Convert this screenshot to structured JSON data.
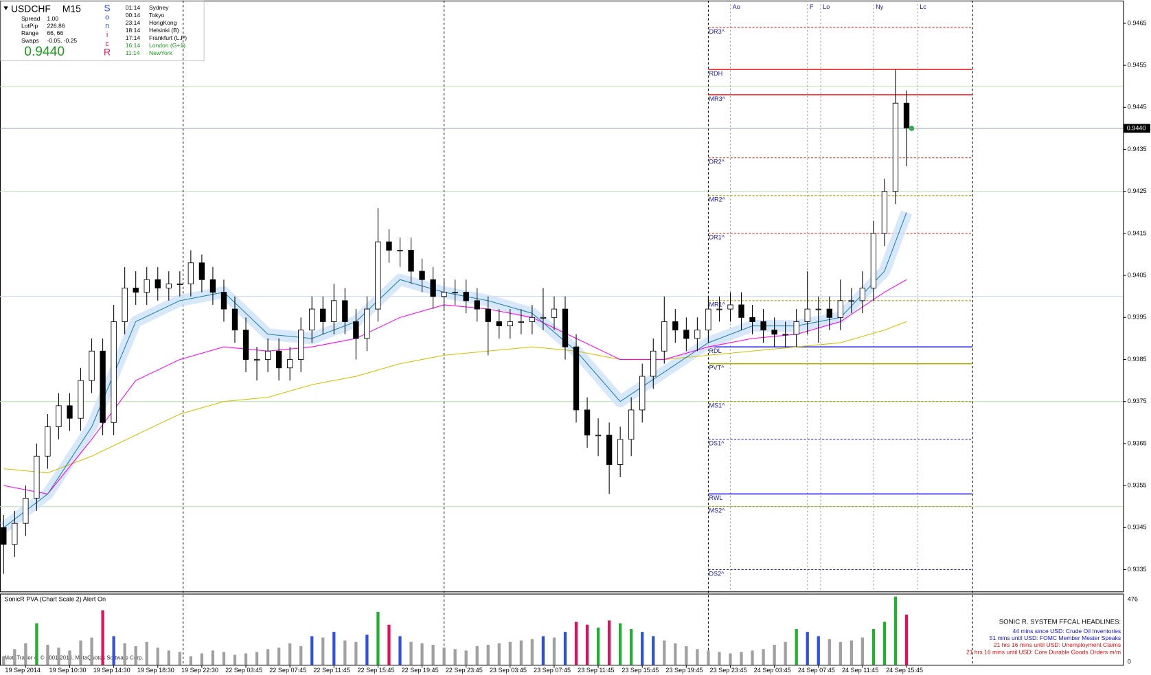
{
  "chart_data": {
    "type": "candlestick",
    "categories": [
      null,
      null,
      "19 Sep 2014",
      null,
      null,
      null,
      "19 Sep 10:30",
      null,
      null,
      null,
      "19 Sep 14:30",
      null,
      null,
      null,
      "19 Sep 18:30",
      null,
      null,
      null,
      "19 Sep 22:30",
      null,
      null,
      null,
      "22 Sep 03:45",
      null,
      null,
      null,
      "22 Sep 07:45",
      null,
      null,
      null,
      "22 Sep 11:45",
      null,
      null,
      null,
      "22 Sep 15:45",
      null,
      null,
      null,
      "22 Sep 19:45",
      null,
      null,
      null,
      "22 Sep 23:45",
      null,
      null,
      null,
      "23 Sep 03:45",
      null,
      null,
      null,
      "23 Sep 07:45",
      null,
      null,
      null,
      "23 Sep 11:45",
      null,
      null,
      null,
      "23 Sep 15:45",
      null,
      null,
      null,
      "23 Sep 19:45",
      null,
      null,
      null,
      "23 Sep 23:45",
      null,
      null,
      null,
      "24 Sep 03:45",
      null,
      null,
      null,
      "24 Sep 07:45",
      null,
      null,
      null,
      "24 Sep 11:45",
      null,
      null,
      null,
      "24 Sep 15:45"
    ],
    "open": [
      0.9345,
      0.9341,
      0.9346,
      0.9352,
      0.9362,
      0.9369,
      0.9374,
      0.9371,
      0.938,
      0.9387,
      0.937,
      0.9394,
      0.9402,
      0.9401,
      0.9404,
      0.9402,
      0.9403,
      0.9403,
      0.9408,
      0.9404,
      0.9401,
      0.9397,
      0.9392,
      0.9385,
      0.9385,
      0.9387,
      0.9383,
      0.9385,
      0.9392,
      0.9397,
      0.9394,
      0.9399,
      0.9394,
      0.939,
      0.9397,
      0.9413,
      0.9411,
      0.9411,
      0.9406,
      0.9404,
      0.94,
      0.9401,
      0.9401,
      0.9399,
      0.9397,
      0.9394,
      0.9393,
      0.9394,
      0.9394,
      0.9395,
      0.9395,
      0.9397,
      0.9388,
      0.9373,
      0.9367,
      0.9367,
      0.936,
      0.9366,
      0.9373,
      0.9381,
      0.9387,
      0.9394,
      0.9392,
      0.939,
      0.9392,
      0.9397,
      0.9397,
      0.9398,
      0.9395,
      0.9394,
      0.9392,
      0.9391,
      0.9391,
      0.9394,
      0.9397,
      0.9397,
      0.9395,
      0.9399,
      0.9399,
      0.9402,
      0.9415,
      0.9425,
      0.9446
    ],
    "high": [
      0.9348,
      0.9349,
      0.9355,
      0.9365,
      0.9372,
      0.9377,
      0.9377,
      0.9383,
      0.939,
      0.939,
      0.9398,
      0.9407,
      0.9406,
      0.9407,
      0.9407,
      0.9406,
      0.9406,
      0.9411,
      0.941,
      0.9407,
      0.9404,
      0.94,
      0.9395,
      0.9388,
      0.939,
      0.939,
      0.9388,
      0.9395,
      0.94,
      0.94,
      0.9403,
      0.9402,
      0.9397,
      0.94,
      0.9421,
      0.9416,
      0.9414,
      0.9414,
      0.9409,
      0.9407,
      0.9404,
      0.9404,
      0.9404,
      0.9402,
      0.94,
      0.9397,
      0.9397,
      0.9397,
      0.9398,
      0.9402,
      0.94,
      0.94,
      0.9391,
      0.9376,
      0.9371,
      0.937,
      0.9369,
      0.9376,
      0.9384,
      0.939,
      0.94,
      0.9397,
      0.9395,
      0.9395,
      0.94,
      0.94,
      0.9401,
      0.9401,
      0.9398,
      0.9397,
      0.9395,
      0.9394,
      0.9397,
      0.9406,
      0.94,
      0.94,
      0.9404,
      0.9402,
      0.9406,
      0.9418,
      0.9428,
      0.9454,
      0.9449
    ],
    "low": [
      0.9334,
      0.9338,
      0.9343,
      0.9349,
      0.9359,
      0.9366,
      0.9368,
      0.9368,
      0.9377,
      0.9367,
      0.9367,
      0.9391,
      0.9398,
      0.9398,
      0.9399,
      0.9399,
      0.94,
      0.94,
      0.9401,
      0.9398,
      0.9394,
      0.9389,
      0.9382,
      0.938,
      0.9382,
      0.938,
      0.938,
      0.9382,
      0.9389,
      0.9391,
      0.9391,
      0.9391,
      0.9385,
      0.9387,
      0.9394,
      0.9408,
      0.9407,
      0.9403,
      0.9401,
      0.9397,
      0.9397,
      0.9398,
      0.9396,
      0.9394,
      0.9386,
      0.939,
      0.939,
      0.9391,
      0.9391,
      0.9392,
      0.9392,
      0.9385,
      0.937,
      0.9364,
      0.9362,
      0.9353,
      0.9357,
      0.9362,
      0.937,
      0.9378,
      0.9384,
      0.9389,
      0.9387,
      0.9387,
      0.9389,
      0.9394,
      0.9394,
      0.9392,
      0.9391,
      0.9389,
      0.9388,
      0.9388,
      0.9388,
      0.9391,
      0.9389,
      0.9392,
      0.9392,
      0.9396,
      0.9396,
      0.9399,
      0.9412,
      0.9422,
      0.9431
    ],
    "close": [
      0.9341,
      0.9346,
      0.9352,
      0.9362,
      0.9369,
      0.9374,
      0.9371,
      0.938,
      0.9387,
      0.937,
      0.9394,
      0.9402,
      0.9401,
      0.9404,
      0.9402,
      0.9403,
      0.9403,
      0.9408,
      0.9404,
      0.9401,
      0.9397,
      0.9392,
      0.9385,
      0.9385,
      0.9387,
      0.9383,
      0.9385,
      0.9392,
      0.9397,
      0.9394,
      0.9399,
      0.9394,
      0.939,
      0.9397,
      0.9413,
      0.9411,
      0.9411,
      0.9406,
      0.9404,
      0.94,
      0.9401,
      0.9401,
      0.9399,
      0.9397,
      0.9394,
      0.9393,
      0.9394,
      0.9394,
      0.9395,
      0.9395,
      0.9397,
      0.9388,
      0.9373,
      0.9367,
      0.9367,
      0.936,
      0.9366,
      0.9373,
      0.9381,
      0.9387,
      0.9394,
      0.9392,
      0.939,
      0.9392,
      0.9397,
      0.9397,
      0.9398,
      0.9395,
      0.9394,
      0.9392,
      0.9391,
      0.9391,
      0.9394,
      0.9397,
      0.9397,
      0.9395,
      0.9399,
      0.9399,
      0.9402,
      0.9415,
      0.9425,
      0.9446,
      0.944
    ],
    "xlim": [
      -0.33,
      101.67
    ],
    "ylim": [
      0.93298,
      0.94704
    ],
    "yticks": [
      0.9335,
      0.9345,
      0.9355,
      0.9365,
      0.9375,
      0.9385,
      0.9395,
      0.9405,
      0.9415,
      0.9425,
      0.9435,
      0.9445,
      0.9455,
      0.9465
    ],
    "current_price": {
      "value": 0.944,
      "label": "0.9440"
    },
    "overlays": [
      {
        "color": "#d4c000",
        "x": [
          0,
          4,
          8,
          12,
          16,
          20,
          24,
          28,
          32,
          36,
          40,
          44,
          48,
          52,
          56,
          60,
          64,
          68,
          72,
          76,
          80,
          82
        ],
        "values": [
          0.9359,
          0.9358,
          0.9362,
          0.9367,
          0.9372,
          0.9375,
          0.9376,
          0.9379,
          0.9381,
          0.9384,
          0.9386,
          0.9387,
          0.9388,
          0.9387,
          0.9385,
          0.9385,
          0.9386,
          0.9387,
          0.9388,
          0.9389,
          0.9392,
          0.9394
        ]
      },
      {
        "color": "#ff00ff",
        "x": [
          0,
          4,
          8,
          12,
          16,
          20,
          24,
          28,
          32,
          36,
          40,
          44,
          48,
          52,
          56,
          60,
          64,
          68,
          72,
          76,
          80,
          82
        ],
        "values": [
          0.9355,
          0.9353,
          0.9366,
          0.938,
          0.9385,
          0.9388,
          0.9387,
          0.9388,
          0.939,
          0.9395,
          0.9398,
          0.9397,
          0.9395,
          0.939,
          0.9385,
          0.9385,
          0.9388,
          0.939,
          0.9391,
          0.9394,
          0.9401,
          0.9404
        ]
      },
      {
        "color": "#2080b0",
        "band_color": "#cfe4f8",
        "x": [
          0,
          4,
          8,
          12,
          16,
          20,
          24,
          28,
          32,
          36,
          40,
          44,
          48,
          52,
          56,
          60,
          64,
          68,
          72,
          76,
          80,
          82
        ],
        "values": [
          0.9345,
          0.9353,
          0.9369,
          0.9394,
          0.9399,
          0.9401,
          0.9391,
          0.939,
          0.9394,
          0.9404,
          0.9401,
          0.9399,
          0.9396,
          0.9387,
          0.9375,
          0.9382,
          0.9389,
          0.9393,
          0.9393,
          0.9395,
          0.9406,
          0.942
        ]
      }
    ],
    "hlines": [
      {
        "value": 0.945,
        "color": "#b8e6b0"
      },
      {
        "value": 0.9425,
        "color": "#b8e6b0"
      },
      {
        "value": 0.94,
        "color": "#c8d8f8"
      },
      {
        "value": 0.9375,
        "color": "#b8e6b0"
      },
      {
        "value": 0.935,
        "color": "#b8e6b0"
      }
    ],
    "levels": [
      {
        "label": "DR3^",
        "value": 0.9464,
        "color": "#e03020",
        "dashed": true
      },
      {
        "label": "RDH",
        "value": 0.9454,
        "color": "#ff2020",
        "dashed": false
      },
      {
        "label": "MR3^",
        "value": 0.9448,
        "color": "#ff2020",
        "dashed": false
      },
      {
        "label": "DR2^",
        "value": 0.9433,
        "color": "#e03020",
        "dashed": true
      },
      {
        "label": "MR2^",
        "value": 0.9424,
        "color": "#a0a000",
        "dashed": true
      },
      {
        "label": "DR1^",
        "value": 0.9415,
        "color": "#e03020",
        "dashed": true
      },
      {
        "label": "MR1^",
        "value": 0.9399,
        "color": "#a0a000",
        "dashed": true
      },
      {
        "label": "RDL",
        "value": 0.9388,
        "color": "#3030e0",
        "dashed": false
      },
      {
        "label": "PVT^",
        "value": 0.9384,
        "color": "#b0b000",
        "dashed": false
      },
      {
        "label": "MS1^",
        "value": 0.9375,
        "color": "#a0a000",
        "dashed": true
      },
      {
        "label": "DS1^",
        "value": 0.9366,
        "color": "#3030c0",
        "dashed": true
      },
      {
        "label": "RWL",
        "value": 0.9353,
        "color": "#3030e0",
        "dashed": false
      },
      {
        "label": "MS2^",
        "value": 0.935,
        "color": "#a0a000",
        "dashed": true
      },
      {
        "label": "DS2^",
        "value": 0.9335,
        "color": "#3030c0",
        "dashed": true
      }
    ],
    "sessions": [
      {
        "label": "Ao",
        "x": 66
      },
      {
        "label": "F",
        "x": 73
      },
      {
        "label": "Lo",
        "x": 74.2
      },
      {
        "label": "Ny",
        "x": 79
      },
      {
        "label": "Lc",
        "x": 83
      }
    ],
    "day_separators": [
      16.3,
      40,
      64,
      88
    ],
    "volume": {
      "title": "SonicR PVA  (Chart Scale 2)  Alert On",
      "values": [
        60,
        110,
        150,
        290,
        140,
        120,
        100,
        170,
        190,
        380,
        200,
        150,
        130,
        160,
        120,
        100,
        90,
        60,
        80,
        100,
        90,
        70,
        80,
        90,
        110,
        120,
        150,
        130,
        200,
        190,
        230,
        170,
        160,
        210,
        370,
        280,
        200,
        160,
        150,
        140,
        120,
        110,
        100,
        130,
        140,
        150,
        160,
        170,
        180,
        200,
        190,
        230,
        300,
        280,
        260,
        310,
        290,
        250,
        230,
        200,
        170,
        150,
        130,
        110,
        100,
        90,
        80,
        90,
        100,
        110,
        140,
        160,
        250,
        230,
        200,
        180,
        160,
        170,
        190,
        250,
        300,
        476,
        350
      ],
      "ylim": [
        0,
        476
      ],
      "yticks": [
        0,
        476
      ]
    }
  },
  "info": {
    "symbol": "USDCHF",
    "timeframe": "M15",
    "rows": [
      [
        "Spread",
        "1.00"
      ],
      [
        "LotPip",
        "226.86"
      ],
      [
        "Range",
        "66, 66"
      ],
      [
        "Swaps",
        "-0.05, -0.25"
      ]
    ],
    "price": "0.9440",
    "sonic": [
      "S",
      "o",
      "n",
      "i",
      "c",
      "R"
    ],
    "clock": [
      [
        "01:14",
        "Sydney"
      ],
      [
        "00:14",
        "Tokyo"
      ],
      [
        "23:14",
        "HongKong"
      ],
      [
        "18:14",
        "Helsinki  (B)"
      ],
      [
        "17:14",
        "Frankfurt  (L.P)"
      ],
      [
        "16:14",
        "London  (G+1)"
      ],
      [
        "11:14",
        "NewYork"
      ]
    ]
  },
  "headlines": [
    "SONIC R. SYSTEM  FFCAL HEADLINES:",
    "44 mins since USD: Crude Oil Inventories",
    "51 mins until USD: FOMC Member Mester Speaks",
    "21 hrs 16 mins until USD: Unemployment Claims",
    "21 hrs 16 mins until USD: Core Durable Goods Orders m/m"
  ],
  "copyright": "MetaTrader 4, © 2001-2014, MetaQuotes Software Corp."
}
